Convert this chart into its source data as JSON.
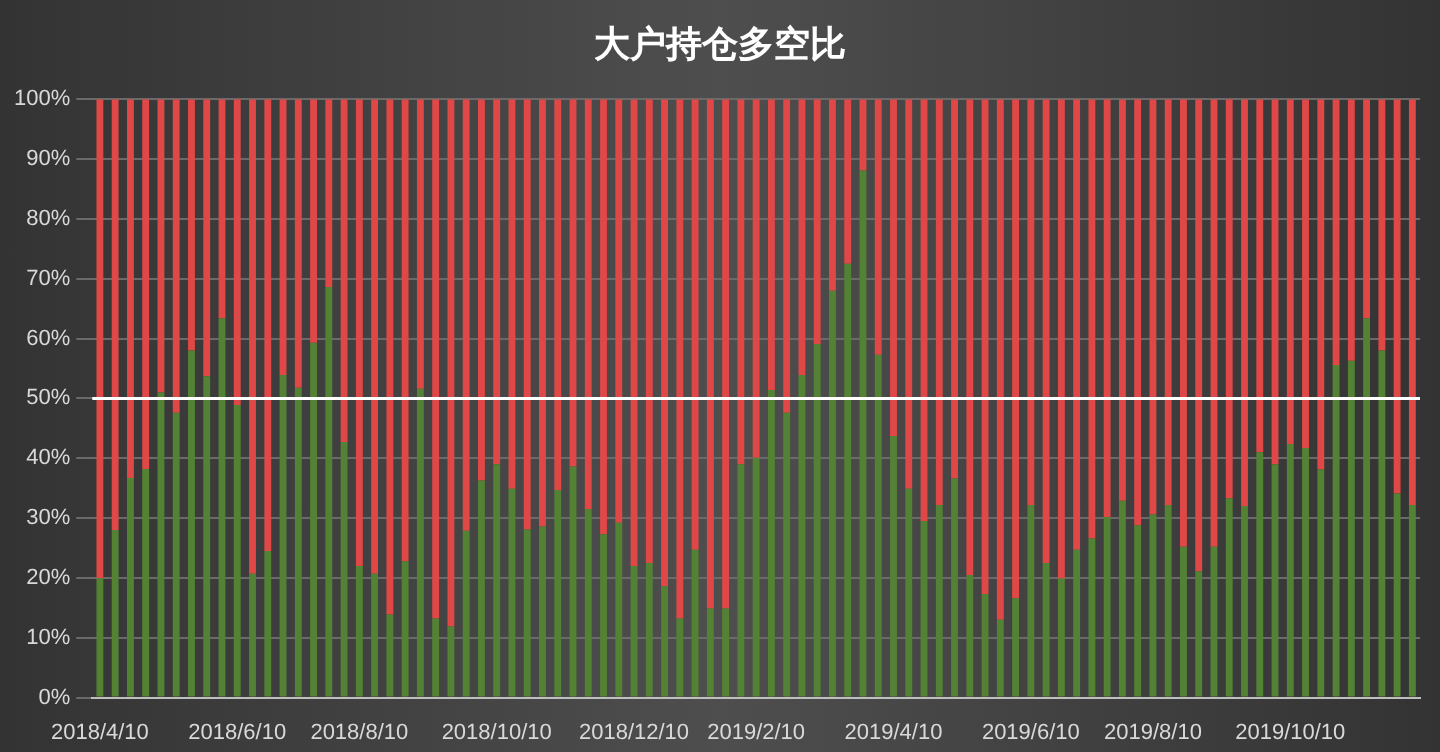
{
  "chart_data": {
    "type": "bar",
    "title": "大户持仓多空比",
    "stacked": true,
    "categories": [
      "2018/4/10",
      null,
      null,
      null,
      null,
      null,
      null,
      null,
      null,
      "2018/6/10",
      null,
      null,
      null,
      null,
      null,
      null,
      null,
      "2018/8/10",
      null,
      null,
      null,
      null,
      null,
      null,
      null,
      null,
      "2018/10/10",
      null,
      null,
      null,
      null,
      null,
      null,
      null,
      null,
      "2018/12/10",
      null,
      null,
      null,
      null,
      null,
      null,
      null,
      "2019/2/10",
      null,
      null,
      null,
      null,
      null,
      null,
      null,
      null,
      "2019/4/10",
      null,
      null,
      null,
      null,
      null,
      null,
      null,
      null,
      "2019/6/10",
      null,
      null,
      null,
      null,
      null,
      null,
      null,
      "2019/8/10",
      null,
      null,
      null,
      null,
      null,
      null,
      null,
      null,
      "2019/10/10",
      null,
      null,
      null,
      null,
      null,
      null,
      null,
      null
    ],
    "series": [
      {
        "color": "#548235",
        "values": [
          20,
          28,
          36.7,
          38.2,
          51,
          47.6,
          58,
          53.7,
          63.4,
          48.9,
          20.7,
          24.5,
          53.9,
          51.8,
          59.3,
          68.6,
          42.7,
          22,
          20.7,
          13.9,
          22.8,
          51.6,
          13.2,
          11.9,
          27.9,
          36.3,
          39,
          34.9,
          28.1,
          28.6,
          34.7,
          38.6,
          31.5,
          27.3,
          29.2,
          22,
          22.5,
          18.6,
          13.2,
          24.7,
          14.9,
          14.9,
          39,
          40.1,
          51.4,
          47.6,
          53.9,
          59.1,
          68,
          72.5,
          88.1,
          57.3,
          43.7,
          34.9,
          29.5,
          32.2,
          36.6,
          20.5,
          17.3,
          13,
          16.6,
          32.2,
          22.5,
          19.9,
          24.7,
          26.6,
          30.2,
          32.9,
          28.8,
          30.6,
          32.2,
          25.2,
          21.1,
          25.2,
          33.3,
          32,
          41,
          39,
          42.4,
          41.7,
          38.1,
          55.6,
          56.3,
          63.4,
          58,
          34.1,
          32.2
        ]
      },
      {
        "color": "#e04848",
        "values": [
          80,
          72,
          63.3,
          61.8,
          49,
          52.4,
          42,
          46.3,
          36.6,
          51.1,
          79.3,
          75.5,
          46.1,
          48.2,
          40.7,
          31.4,
          57.3,
          78,
          79.3,
          86.1,
          77.2,
          48.4,
          86.8,
          88.1,
          72.1,
          63.7,
          61,
          65.1,
          71.9,
          71.4,
          65.3,
          61.4,
          68.5,
          72.7,
          70.8,
          78,
          77.5,
          81.4,
          86.8,
          75.3,
          85.1,
          85.1,
          61,
          59.9,
          48.6,
          52.4,
          46.1,
          40.9,
          32,
          27.5,
          11.9,
          42.7,
          56.3,
          65.1,
          70.5,
          67.8,
          63.4,
          79.5,
          82.7,
          87,
          83.4,
          67.8,
          77.5,
          80.1,
          75.3,
          73.4,
          69.8,
          67.1,
          71.2,
          69.4,
          67.8,
          74.8,
          78.9,
          74.8,
          66.7,
          68,
          59,
          61,
          57.6,
          58.3,
          61.9,
          44.4,
          43.7,
          36.6,
          42,
          65.9,
          67.8
        ]
      }
    ],
    "ylim": [
      0,
      100
    ],
    "yticks": [
      {
        "value": 0,
        "label": "0%"
      },
      {
        "value": 10,
        "label": "10%"
      },
      {
        "value": 20,
        "label": "20%"
      },
      {
        "value": 30,
        "label": "30%"
      },
      {
        "value": 40,
        "label": "40%"
      },
      {
        "value": 50,
        "label": "50%"
      },
      {
        "value": 60,
        "label": "60%"
      },
      {
        "value": 70,
        "label": "70%"
      },
      {
        "value": 80,
        "label": "80%"
      },
      {
        "value": 90,
        "label": "90%"
      },
      {
        "value": 100,
        "label": "100%"
      }
    ],
    "grid": "y",
    "ref_lines": [
      {
        "axis": "y",
        "value": 50,
        "color": "#ffffff"
      }
    ]
  }
}
